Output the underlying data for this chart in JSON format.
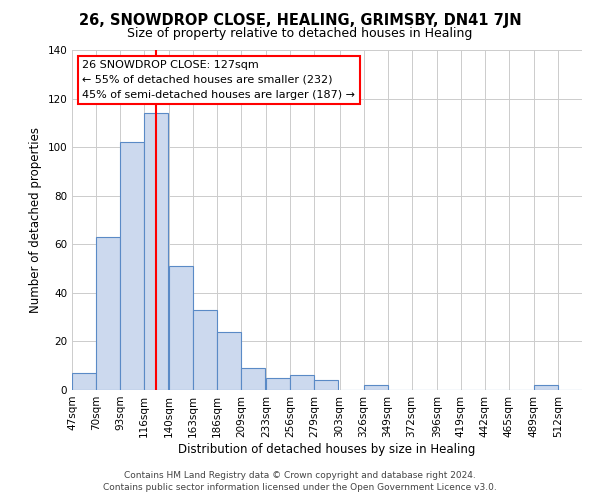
{
  "title": "26, SNOWDROP CLOSE, HEALING, GRIMSBY, DN41 7JN",
  "subtitle": "Size of property relative to detached houses in Healing",
  "xlabel": "Distribution of detached houses by size in Healing",
  "ylabel": "Number of detached properties",
  "bin_labels": [
    "47sqm",
    "70sqm",
    "93sqm",
    "116sqm",
    "140sqm",
    "163sqm",
    "186sqm",
    "209sqm",
    "233sqm",
    "256sqm",
    "279sqm",
    "303sqm",
    "326sqm",
    "349sqm",
    "372sqm",
    "396sqm",
    "419sqm",
    "442sqm",
    "465sqm",
    "489sqm",
    "512sqm"
  ],
  "bar_heights": [
    7,
    63,
    102,
    114,
    51,
    33,
    24,
    9,
    5,
    6,
    4,
    0,
    2,
    0,
    0,
    0,
    0,
    0,
    0,
    2,
    0
  ],
  "bar_color": "#ccd9ee",
  "bar_edge_color": "#5a8ac6",
  "ylim": [
    0,
    140
  ],
  "yticks": [
    0,
    20,
    40,
    60,
    80,
    100,
    120,
    140
  ],
  "bin_starts": [
    47,
    70,
    93,
    116,
    140,
    163,
    186,
    209,
    233,
    256,
    279,
    303,
    326,
    349,
    372,
    396,
    419,
    442,
    465,
    489,
    512
  ],
  "bin_width": 23,
  "red_line_x": 127,
  "annotation_line1": "26 SNOWDROP CLOSE: 127sqm",
  "annotation_line2": "← 55% of detached houses are smaller (232)",
  "annotation_line3": "45% of semi-detached houses are larger (187) →",
  "footer_line1": "Contains HM Land Registry data © Crown copyright and database right 2024.",
  "footer_line2": "Contains public sector information licensed under the Open Government Licence v3.0.",
  "background_color": "#ffffff",
  "grid_color": "#cccccc",
  "title_fontsize": 10.5,
  "subtitle_fontsize": 9,
  "axis_label_fontsize": 8.5,
  "tick_fontsize": 7.5,
  "footer_fontsize": 6.5,
  "annotation_fontsize": 8
}
